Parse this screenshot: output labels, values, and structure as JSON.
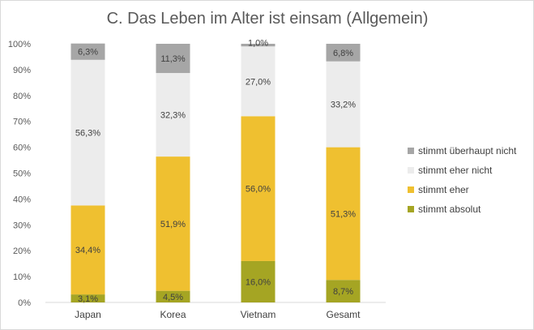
{
  "chart_data": {
    "type": "bar",
    "stacked": true,
    "title": "C. Das Leben im Alter ist einsam (Allgemein)",
    "categories": [
      "Japan",
      "Korea",
      "Vietnam",
      "Gesamt"
    ],
    "series": [
      {
        "name": "stimmt absolut",
        "color": "#a5a523",
        "values": [
          3.1,
          4.5,
          16.0,
          8.7
        ],
        "labels": [
          "3,1%",
          "4,5%",
          "16,0%",
          "8,7%"
        ]
      },
      {
        "name": "stimmt eher",
        "color": "#efc030",
        "values": [
          34.4,
          51.9,
          56.0,
          51.3
        ],
        "labels": [
          "34,4%",
          "51,9%",
          "56,0%",
          "51,3%"
        ]
      },
      {
        "name": "stimmt eher nicht",
        "color": "#ececec",
        "values": [
          56.3,
          32.3,
          27.0,
          33.2
        ],
        "labels": [
          "56,3%",
          "32,3%",
          "27,0%",
          "33,2%"
        ]
      },
      {
        "name": "stimmt überhaupt nicht",
        "color": "#a6a6a6",
        "values": [
          6.3,
          11.3,
          1.0,
          6.8
        ],
        "labels": [
          "6,3%",
          "11,3%",
          "1,0%",
          "6,8%"
        ]
      }
    ],
    "ylim": [
      0,
      100
    ],
    "yticks": [
      "0%",
      "10%",
      "20%",
      "30%",
      "40%",
      "50%",
      "60%",
      "70%",
      "80%",
      "90%",
      "100%"
    ],
    "grid": false,
    "legend": "right"
  }
}
